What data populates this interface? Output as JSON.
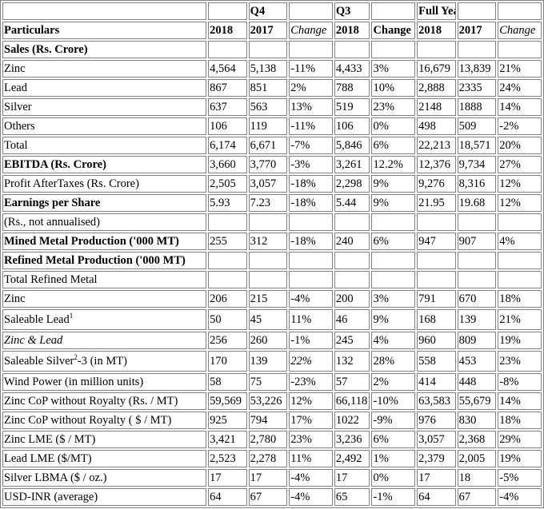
{
  "periods": {
    "q4": "Q4",
    "q3": "Q3",
    "full_year": "Full Year"
  },
  "columns": {
    "particulars": "Particulars",
    "q4_2018": "2018",
    "q4_2017": "2017",
    "q4_change": "Change",
    "q3_2018": "2018",
    "q3_change": "Change",
    "fy_2018": "2018",
    "fy_2017": "2017",
    "fy_change": "Change"
  },
  "rows": [
    {
      "label": "Sales (Rs. Crore)",
      "bold": true,
      "values": [
        "",
        "",
        "",
        "",
        "",
        "",
        "",
        ""
      ]
    },
    {
      "label": "Zinc",
      "values": [
        "4,564",
        "5,138",
        "-11%",
        "4,433",
        "3%",
        "16,679",
        "13,839",
        "21%"
      ]
    },
    {
      "label": "Lead",
      "values": [
        "867",
        "851",
        "2%",
        "788",
        "10%",
        "2,888",
        "2335",
        "24%"
      ]
    },
    {
      "label": "Silver",
      "values": [
        "637",
        "563",
        "13%",
        "519",
        "23%",
        "2148",
        "1888",
        "14%"
      ]
    },
    {
      "label": "Others",
      "values": [
        "106",
        "119",
        "-11%",
        "106",
        "0%",
        "498",
        "509",
        "-2%"
      ]
    },
    {
      "label": "Total",
      "values": [
        "6,174",
        "6,671",
        "-7%",
        "5,846",
        "6%",
        "22,213",
        "18,571",
        "20%"
      ]
    },
    {
      "label": "EBITDA (Rs. Crore)",
      "bold": true,
      "values": [
        "3,660",
        "3,770",
        "-3%",
        "3,261",
        "12.2%",
        "12,376",
        "9,734",
        "27%"
      ]
    },
    {
      "label": "Profit AfterTaxes (Rs. Crore)",
      "values": [
        "2,505",
        "3,057",
        "-18%",
        "2,298",
        "9%",
        "9,276",
        "8,316",
        "12%"
      ]
    },
    {
      "label": "Earnings per Share",
      "bold": true,
      "values": [
        "5.93",
        "7.23",
        "-18%",
        "5.44",
        "9%",
        "21.95",
        "19.68",
        "12%"
      ]
    },
    {
      "label": "(Rs., not annualised)",
      "values": [
        "",
        "",
        "",
        "",
        "",
        "",
        "",
        ""
      ]
    },
    {
      "label": "Mined Metal Production ('000 MT)",
      "bold": true,
      "values": [
        "255",
        "312",
        "-18%",
        "240",
        "6%",
        "947",
        "907",
        "4%"
      ]
    },
    {
      "label": "Refined Metal Production ('000 MT)",
      "bold": true,
      "values": [
        "",
        "",
        "",
        "",
        "",
        "",
        "",
        ""
      ]
    },
    {
      "label": "Total Refined Metal",
      "values": [
        "",
        "",
        "",
        "",
        "",
        "",
        "",
        ""
      ]
    },
    {
      "label": "Zinc",
      "values": [
        "206",
        "215",
        "-4%",
        "200",
        "3%",
        "791",
        "670",
        "18%"
      ]
    },
    {
      "label": "Saleable Lead",
      "sup": "1",
      "values": [
        "50",
        "45",
        "11%",
        "46",
        "9%",
        "168",
        "139",
        "21%"
      ]
    },
    {
      "label": "Zinc & Lead",
      "italic": true,
      "values": [
        "256",
        "260",
        "-1%",
        "245",
        "4%",
        "960",
        "809",
        "19%"
      ]
    },
    {
      "label": "Saleable Silver",
      "sup": "2",
      "label_suffix": "-3 (in MT)",
      "values": [
        "170",
        "139",
        "22%",
        "132",
        "28%",
        "558",
        "453",
        "23%"
      ]
    },
    {
      "label": "Wind Power (in million units)",
      "values": [
        "58",
        "75",
        "-23%",
        "57",
        "2%",
        "414",
        "448",
        "-8%"
      ]
    },
    {
      "label": "Zinc CoP without Royalty (Rs. / MT)",
      "values": [
        "59,569",
        "53,226",
        "12%",
        "66,118",
        "-10%",
        "63,583",
        "55,679",
        "14%"
      ]
    },
    {
      "label": "Zinc CoP without Royalty ( $ / MT)",
      "values": [
        "925",
        "794",
        "17%",
        "1022",
        "-9%",
        "976",
        "830",
        "18%"
      ]
    },
    {
      "label": "Zinc LME ($ / MT)",
      "values": [
        "3,421",
        "2,780",
        "23%",
        "3,236",
        "6%",
        "3,057",
        "2,368",
        "29%"
      ]
    },
    {
      "label": "Lead LME ($/MT)",
      "values": [
        "2,523",
        "2,278",
        "11%",
        "2,492",
        "1%",
        "2,379",
        "2,005",
        "19%"
      ]
    },
    {
      "label": "Silver LBMA ($ / oz.)",
      "values": [
        "17",
        "17",
        "-4%",
        "17",
        "0%",
        "17",
        "18",
        "-5%"
      ]
    },
    {
      "label": "USD-INR (average)",
      "values": [
        "64",
        "67",
        "-4%",
        "65",
        "-1%",
        "64",
        "67",
        "-4%"
      ]
    }
  ]
}
